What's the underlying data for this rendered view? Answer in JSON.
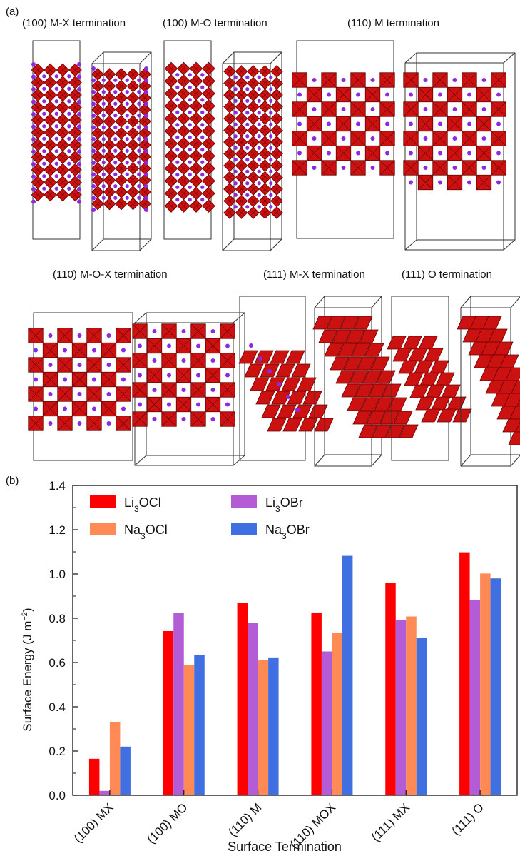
{
  "panel_a": {
    "label": "(a)",
    "row1": [
      {
        "title": "(100) M-X termination"
      },
      {
        "title": "(100) M-O termination"
      },
      {
        "title": "(110) M termination"
      }
    ],
    "row2": [
      {
        "title": "(110) M-O-X termination"
      },
      {
        "title": "(111) M-X termination"
      },
      {
        "title": "(111) O termination"
      }
    ]
  },
  "panel_b": {
    "label": "(b)"
  },
  "colors": {
    "octahedron": "#cc1111",
    "octahedron_edge": "#6a0000",
    "atom": "#8a2be2",
    "cell": "#333333"
  },
  "chart_data": {
    "type": "bar",
    "xlabel": "Surface Termination",
    "ylabel": "Surface Energy (J m",
    "ylabel_sup": "−2",
    "ylabel_close": ")",
    "ylim": [
      0.0,
      1.4
    ],
    "yticks": [
      "0.0",
      "0.2",
      "0.4",
      "0.6",
      "0.8",
      "1.0",
      "1.2",
      "1.4"
    ],
    "categories": [
      "(100) MX",
      "(100) MO",
      "(110) M",
      "(110) MOX",
      "(111) MX",
      "(111) O"
    ],
    "series": [
      {
        "base": "Li",
        "sub": "3",
        "rest": "OCl",
        "color": "#ff0000",
        "values": [
          0.165,
          0.742,
          0.868,
          0.826,
          0.958,
          1.098
        ]
      },
      {
        "base": "Li",
        "sub": "3",
        "rest": "OBr",
        "color": "#b45cd6",
        "values": [
          0.02,
          0.823,
          0.778,
          0.65,
          0.792,
          0.884
        ]
      },
      {
        "base": "Na",
        "sub": "3",
        "rest": "OCl",
        "color": "#ff8a55",
        "values": [
          0.332,
          0.59,
          0.61,
          0.735,
          0.808,
          1.002
        ]
      },
      {
        "base": "Na",
        "sub": "3",
        "rest": "OBr",
        "color": "#3f6fe0",
        "values": [
          0.22,
          0.635,
          0.623,
          1.082,
          0.713,
          0.98
        ]
      }
    ]
  }
}
